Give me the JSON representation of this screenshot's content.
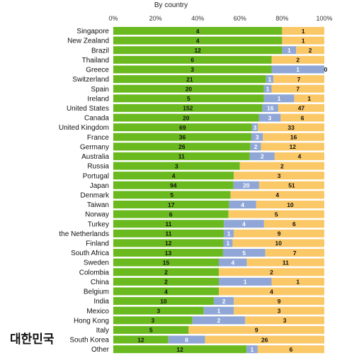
{
  "chart_data": {
    "type": "bar",
    "orientation": "horizontal",
    "stacked": "percent",
    "subtitle": "By country",
    "xlim": [
      0,
      100
    ],
    "x_ticks": [
      "0%",
      "20%",
      "40%",
      "60%",
      "80%",
      "100%"
    ],
    "legend": "none",
    "annotation": "대한민국",
    "colors": [
      "#6aba1f",
      "#8fa6d6",
      "#fbc868"
    ],
    "categories": [
      "Singapore",
      "New Zealand",
      "Brazil",
      "Thailand",
      "Greece",
      "Switzerland",
      "Spain",
      "Ireland",
      "United States",
      "Canada",
      "United Kingdom",
      "France",
      "Germany",
      "Australia",
      "Russia",
      "Portugal",
      "Japan",
      "Denmark",
      "Taiwan",
      "Norway",
      "Turkey",
      "the Netherlands",
      "Finland",
      "South Africa",
      "Sweden",
      "Colombia",
      "China",
      "Belgium",
      "India",
      "Mexico",
      "Hong Kong",
      "Italy",
      "South Korea",
      "Other"
    ],
    "series": [
      {
        "values": [
          4,
          4,
          12,
          6,
          3,
          21,
          20,
          5,
          152,
          20,
          69,
          36,
          26,
          11,
          3,
          4,
          94,
          5,
          17,
          6,
          11,
          11,
          12,
          13,
          15,
          2,
          2,
          4,
          10,
          3,
          3,
          5,
          12,
          12
        ]
      },
      {
        "values": [
          0,
          0,
          1,
          0,
          1,
          1,
          1,
          1,
          16,
          3,
          3,
          3,
          2,
          2,
          0,
          0,
          20,
          0,
          4,
          0,
          4,
          1,
          1,
          5,
          4,
          0,
          1,
          0,
          2,
          1,
          2,
          0,
          8,
          1
        ]
      },
      {
        "values": [
          1,
          1,
          2,
          2,
          0,
          7,
          7,
          1,
          47,
          6,
          33,
          16,
          12,
          4,
          2,
          3,
          51,
          4,
          10,
          5,
          6,
          9,
          10,
          7,
          11,
          2,
          1,
          4,
          9,
          3,
          3,
          9,
          26,
          6
        ]
      }
    ]
  }
}
